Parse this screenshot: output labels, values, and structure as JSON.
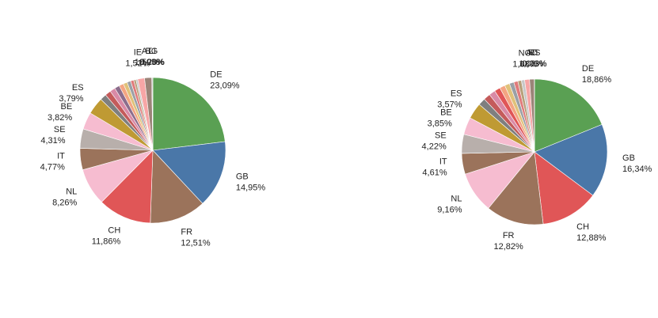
{
  "chart_data": [
    {
      "type": "pie",
      "categories": [
        "DE",
        "GB",
        "FR",
        "CH",
        "NL",
        "IT",
        "SE",
        "BE",
        "ES",
        null,
        null,
        null,
        null,
        null,
        null,
        null,
        null,
        null,
        null,
        "IE",
        "AT",
        "BG",
        "LI"
      ],
      "values": [
        23.09,
        14.95,
        12.51,
        11.86,
        8.26,
        4.77,
        4.31,
        3.82,
        3.79,
        1.4,
        1.3,
        1.2,
        1.1,
        1.0,
        0.9,
        0.8,
        0.7,
        0.5,
        0.4,
        1.52,
        1.59,
        0.03,
        0.2
      ],
      "value_labels": [
        "23,09%",
        "14,95%",
        "12,51%",
        "11,86%",
        "8,26%",
        "4,77%",
        "4,31%",
        "3,82%",
        "3,79%",
        null,
        null,
        null,
        null,
        null,
        null,
        null,
        null,
        null,
        null,
        "1,52%",
        "1,59%",
        "0,03%",
        "0,20%"
      ],
      "colors": [
        "#5aa053",
        "#4a77a8",
        "#9b735b",
        "#e05657",
        "#f6bcd0",
        "#9b735b",
        "#b8afab",
        "#f6bcd0",
        "#bf9a33",
        "#7f7f7f",
        "#c45b5b",
        "#d98aa6",
        "#8c6d8c",
        "#f4a582",
        "#e0c27a",
        "#9aa0a6",
        "#e07b7b",
        "#b7a07a",
        "#c8c8c8",
        "#f7a6a6",
        "#9b8478",
        "#d0a0b8",
        "#bdbdbd"
      ]
    },
    {
      "type": "pie",
      "categories": [
        "DE",
        "GB",
        "CH",
        "FR",
        "NL",
        "IT",
        "SE",
        "BE",
        "ES",
        null,
        null,
        null,
        null,
        null,
        null,
        null,
        null,
        null,
        null,
        "NO",
        "AT",
        "RS",
        "LI"
      ],
      "values": [
        18.86,
        16.34,
        12.88,
        12.82,
        9.16,
        4.61,
        4.22,
        3.85,
        3.57,
        1.6,
        1.5,
        1.4,
        1.3,
        1.2,
        1.1,
        1.0,
        0.9,
        0.8,
        0.72,
        1.08,
        1.06,
        0.0,
        0.03
      ],
      "value_labels": [
        "18,86%",
        "16,34%",
        "12,88%",
        "12,82%",
        "9,16%",
        "4,61%",
        "4,22%",
        "3,85%",
        "3,57%",
        null,
        null,
        null,
        null,
        null,
        null,
        null,
        null,
        null,
        null,
        "1,08%",
        "1,06%",
        "0,00%",
        "0,03%"
      ],
      "colors": [
        "#5aa053",
        "#4a77a8",
        "#e05657",
        "#9b735b",
        "#f6bcd0",
        "#9b735b",
        "#b8afab",
        "#f6bcd0",
        "#bf9a33",
        "#7f7f7f",
        "#c45b5b",
        "#d98aa6",
        "#e05657",
        "#f4a582",
        "#e0c27a",
        "#9aa0a6",
        "#e07b7b",
        "#b7a07a",
        "#c8c8c8",
        "#f7a6a6",
        "#9b8478",
        "#d0a0b8",
        "#bdbdbd"
      ]
    }
  ]
}
